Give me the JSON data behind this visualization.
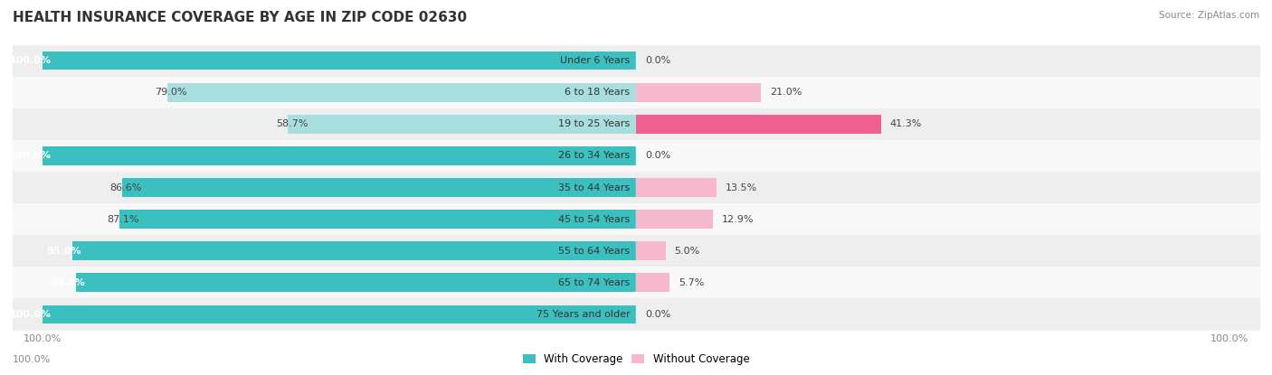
{
  "title": "HEALTH INSURANCE COVERAGE BY AGE IN ZIP CODE 02630",
  "source": "Source: ZipAtlas.com",
  "categories": [
    "Under 6 Years",
    "6 to 18 Years",
    "19 to 25 Years",
    "26 to 34 Years",
    "35 to 44 Years",
    "45 to 54 Years",
    "55 to 64 Years",
    "65 to 74 Years",
    "75 Years and older"
  ],
  "with_coverage": [
    100.0,
    79.0,
    58.7,
    100.0,
    86.6,
    87.1,
    95.0,
    94.3,
    100.0
  ],
  "without_coverage": [
    0.0,
    21.0,
    41.3,
    0.0,
    13.5,
    12.9,
    5.0,
    5.7,
    0.0
  ],
  "color_with_dark": "#3bbfbf",
  "color_with_light": "#a8dede",
  "color_without_dark": "#f06090",
  "color_without_light": "#f5b8cc",
  "bar_height": 0.58,
  "background_color": "#ffffff",
  "row_bg_even": "#f0f0f0",
  "row_bg_odd": "#f8f8f8",
  "title_fontsize": 11,
  "label_fontsize": 8,
  "tick_fontsize": 8,
  "legend_fontsize": 8.5
}
